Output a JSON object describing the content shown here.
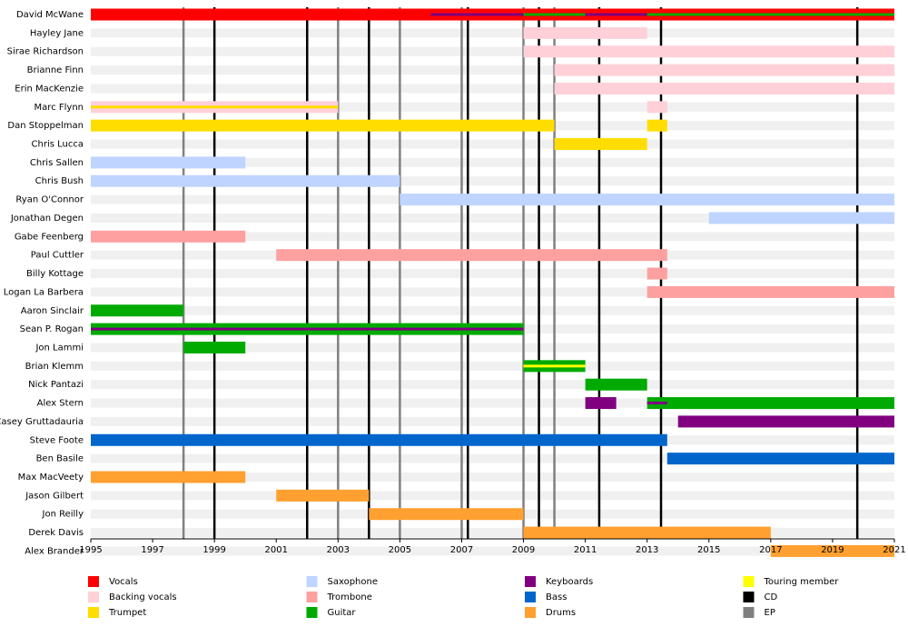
{
  "chart_data": {
    "type": "timeline",
    "xlim": [
      1995,
      2021
    ],
    "xticks": [
      1995,
      1997,
      1999,
      2001,
      2003,
      2005,
      2007,
      2009,
      2011,
      2013,
      2015,
      2017,
      2019,
      2021
    ],
    "roles": [
      {
        "name": "Vocals",
        "color": "#ff0000"
      },
      {
        "name": "Backing vocals",
        "color": "#ffd0d8"
      },
      {
        "name": "Trumpet",
        "color": "#ffdd00"
      },
      {
        "name": "Saxophone",
        "color": "#bfd4ff"
      },
      {
        "name": "Trombone",
        "color": "#ffa0a0"
      },
      {
        "name": "Guitar",
        "color": "#00aa00"
      },
      {
        "name": "Keyboards",
        "color": "#800080"
      },
      {
        "name": "Bass",
        "color": "#0066cc"
      },
      {
        "name": "Drums",
        "color": "#ffa030"
      },
      {
        "name": "Touring member",
        "color": "#ffff00"
      },
      {
        "name": "CD",
        "color": "#000000"
      },
      {
        "name": "EP",
        "color": "#808080"
      }
    ],
    "releases": [
      {
        "role": "CD",
        "year": 1999
      },
      {
        "role": "CD",
        "year": 2002
      },
      {
        "role": "CD",
        "year": 2004
      },
      {
        "role": "CD",
        "year": 2007.2
      },
      {
        "role": "CD",
        "year": 2009.5
      },
      {
        "role": "CD",
        "year": 2011.45
      },
      {
        "role": "CD",
        "year": 2013.45
      },
      {
        "role": "CD",
        "year": 2019.8
      },
      {
        "role": "EP",
        "year": 1998
      },
      {
        "role": "EP",
        "year": 2003
      },
      {
        "role": "EP",
        "year": 2005
      },
      {
        "role": "EP",
        "year": 2007
      },
      {
        "role": "EP",
        "year": 2009
      },
      {
        "role": "EP",
        "year": 2010
      }
    ],
    "members": [
      {
        "name": "David McWane",
        "periods": [
          {
            "role": "Vocals",
            "start": 1995,
            "end": 2021
          },
          {
            "role": "Keyboards",
            "start": 2006,
            "end": 2009,
            "thin": true
          },
          {
            "role": "Guitar",
            "start": 2009,
            "end": 2011,
            "thin": true
          },
          {
            "role": "Keyboards",
            "start": 2011,
            "end": 2013,
            "thin": true
          },
          {
            "role": "Guitar",
            "start": 2013,
            "end": 2021,
            "thin": true
          }
        ]
      },
      {
        "name": "Hayley Jane",
        "periods": [
          {
            "role": "Backing vocals",
            "start": 2009,
            "end": 2013
          }
        ]
      },
      {
        "name": "Sirae Richardson",
        "periods": [
          {
            "role": "Backing vocals",
            "start": 2009,
            "end": 2021
          }
        ]
      },
      {
        "name": "Brianne Finn",
        "periods": [
          {
            "role": "Backing vocals",
            "start": 2010,
            "end": 2021
          }
        ]
      },
      {
        "name": "Erin MacKenzie",
        "periods": [
          {
            "role": "Backing vocals",
            "start": 2010,
            "end": 2021
          }
        ]
      },
      {
        "name": "Marc Flynn",
        "periods": [
          {
            "role": "Backing vocals",
            "start": 1995,
            "end": 2003
          },
          {
            "role": "Trumpet",
            "start": 1995,
            "end": 2003,
            "thin": true
          },
          {
            "role": "Backing vocals",
            "start": 2013,
            "end": 2013.65
          }
        ]
      },
      {
        "name": "Dan Stoppelman",
        "periods": [
          {
            "role": "Trumpet",
            "start": 1995,
            "end": 2010
          },
          {
            "role": "Trumpet",
            "start": 2013,
            "end": 2013.65
          }
        ]
      },
      {
        "name": "Chris Lucca",
        "periods": [
          {
            "role": "Trumpet",
            "start": 2010,
            "end": 2013
          }
        ]
      },
      {
        "name": "Chris Sallen",
        "periods": [
          {
            "role": "Saxophone",
            "start": 1995,
            "end": 2000
          }
        ]
      },
      {
        "name": "Chris Bush",
        "periods": [
          {
            "role": "Saxophone",
            "start": 1995,
            "end": 2005
          }
        ]
      },
      {
        "name": "Ryan O'Connor",
        "periods": [
          {
            "role": "Saxophone",
            "start": 2005,
            "end": 2021
          }
        ]
      },
      {
        "name": "Jonathan Degen",
        "periods": [
          {
            "role": "Saxophone",
            "start": 2015,
            "end": 2021
          }
        ]
      },
      {
        "name": "Gabe Feenberg",
        "periods": [
          {
            "role": "Trombone",
            "start": 1995,
            "end": 2000
          }
        ]
      },
      {
        "name": "Paul Cuttler",
        "periods": [
          {
            "role": "Trombone",
            "start": 2001,
            "end": 2013.65
          }
        ]
      },
      {
        "name": "Billy Kottage",
        "periods": [
          {
            "role": "Trombone",
            "start": 2013,
            "end": 2013.65
          }
        ]
      },
      {
        "name": "Logan La Barbera",
        "periods": [
          {
            "role": "Trombone",
            "start": 2013,
            "end": 2021
          }
        ]
      },
      {
        "name": "Aaron Sinclair",
        "periods": [
          {
            "role": "Guitar",
            "start": 1995,
            "end": 1998
          }
        ]
      },
      {
        "name": "Sean P. Rogan",
        "periods": [
          {
            "role": "Guitar",
            "start": 1995,
            "end": 2009
          },
          {
            "role": "Keyboards",
            "start": 1995,
            "end": 2009,
            "thin": true
          }
        ]
      },
      {
        "name": "Jon Lammi",
        "periods": [
          {
            "role": "Guitar",
            "start": 1998,
            "end": 2000
          }
        ]
      },
      {
        "name": "Brian Klemm",
        "periods": [
          {
            "role": "Guitar",
            "start": 2009,
            "end": 2011
          },
          {
            "role": "Touring member",
            "start": 2009,
            "end": 2011,
            "thin": true
          }
        ]
      },
      {
        "name": "Nick Pantazi",
        "periods": [
          {
            "role": "Guitar",
            "start": 2011,
            "end": 2013
          }
        ]
      },
      {
        "name": "Alex Stern",
        "periods": [
          {
            "role": "Keyboards",
            "start": 2011,
            "end": 2012
          },
          {
            "role": "Guitar",
            "start": 2013,
            "end": 2021
          },
          {
            "role": "Keyboards",
            "start": 2013,
            "end": 2013.65,
            "thin": true
          }
        ]
      },
      {
        "name": "Casey Gruttadauria",
        "periods": [
          {
            "role": "Keyboards",
            "start": 2014,
            "end": 2021
          }
        ]
      },
      {
        "name": "Steve Foote",
        "periods": [
          {
            "role": "Bass",
            "start": 1995,
            "end": 2013.65
          }
        ]
      },
      {
        "name": "Ben Basile",
        "periods": [
          {
            "role": "Bass",
            "start": 2013.65,
            "end": 2021
          }
        ]
      },
      {
        "name": "Max MacVeety",
        "periods": [
          {
            "role": "Drums",
            "start": 1995,
            "end": 2000
          }
        ]
      },
      {
        "name": "Jason Gilbert",
        "periods": [
          {
            "role": "Drums",
            "start": 2001,
            "end": 2004
          }
        ]
      },
      {
        "name": "Jon Reilly",
        "periods": [
          {
            "role": "Drums",
            "start": 2004,
            "end": 2009
          }
        ]
      },
      {
        "name": "Derek Davis",
        "periods": [
          {
            "role": "Drums",
            "start": 2009,
            "end": 2017
          }
        ]
      },
      {
        "name": "Alex Brander",
        "periods": [
          {
            "role": "Drums",
            "start": 2017,
            "end": 2021
          }
        ]
      }
    ]
  }
}
